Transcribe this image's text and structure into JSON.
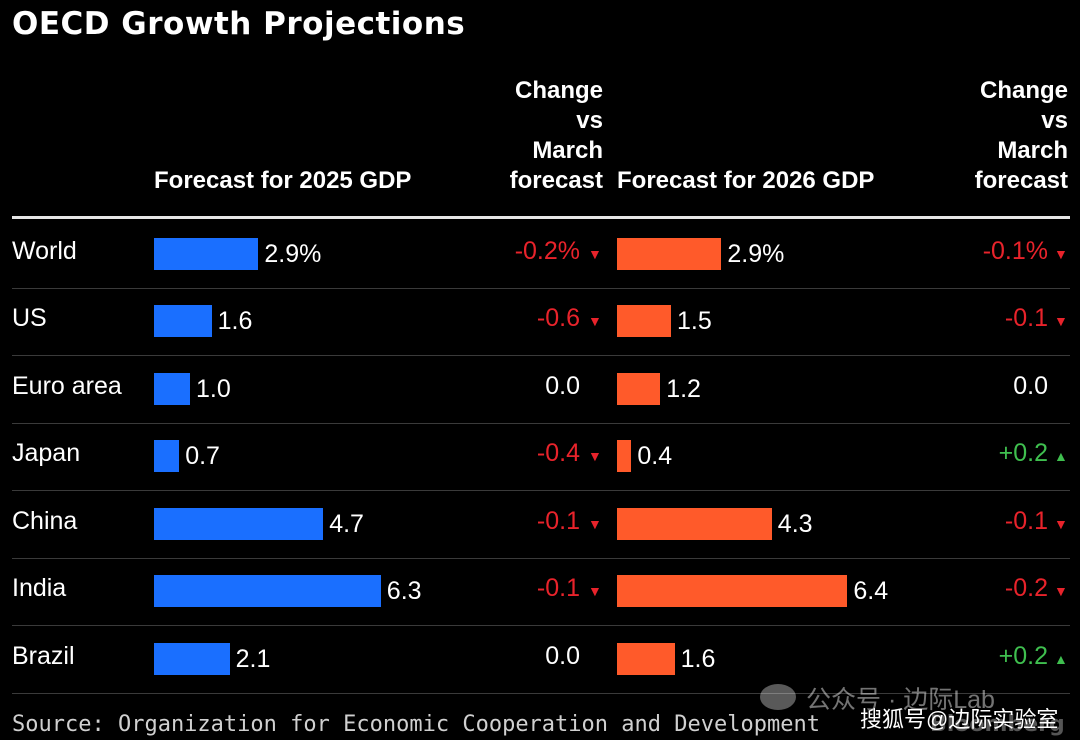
{
  "chart_data": {
    "type": "bar",
    "title": "OECD Growth Projections",
    "categories": [
      "World",
      "US",
      "Euro area",
      "Japan",
      "China",
      "India",
      "Brazil"
    ],
    "series": [
      {
        "name": "Forecast for 2025 GDP",
        "values": [
          2.9,
          1.6,
          1.0,
          0.7,
          4.7,
          6.3,
          2.1
        ],
        "labels": [
          "2.9%",
          "1.6",
          "1.0",
          "0.7",
          "4.7",
          "6.3",
          "2.1"
        ],
        "color": "#1a6fff",
        "change_header": "Change vs March forecast",
        "change": [
          -0.2,
          -0.6,
          0.0,
          -0.4,
          -0.1,
          -0.1,
          0.0
        ],
        "change_labels": [
          "-0.2%",
          "-0.6",
          "0.0",
          "-0.4",
          "-0.1",
          "-0.1",
          "0.0"
        ]
      },
      {
        "name": "Forecast for 2026 GDP",
        "values": [
          2.9,
          1.5,
          1.2,
          0.4,
          4.3,
          6.4,
          1.6
        ],
        "labels": [
          "2.9%",
          "1.5",
          "1.2",
          "0.4",
          "4.3",
          "6.4",
          "1.6"
        ],
        "color": "#ff5a2a",
        "change_header": "Change vs March forecast",
        "change": [
          -0.1,
          -0.1,
          0.0,
          0.2,
          -0.1,
          -0.2,
          0.2
        ],
        "change_labels": [
          "-0.1%",
          "-0.1",
          "0.0",
          "+0.2",
          "-0.1",
          "-0.2",
          "+0.2"
        ]
      }
    ],
    "source": "Source: Organization for Economic Cooperation and Development",
    "brand": "Bloomberg"
  },
  "headers": {
    "col1": "Forecast for 2025 GDP",
    "col2": "Forecast for 2026 GDP",
    "change_lines": [
      "Change",
      "vs",
      "March",
      "forecast"
    ]
  },
  "colors": {
    "negative": "#e8232b",
    "positive": "#3fbf4f",
    "neutral": "#ffffff"
  },
  "watermark": {
    "line1": "公众号 · 边际Lab",
    "line2": "搜狐号@边际实验室"
  }
}
